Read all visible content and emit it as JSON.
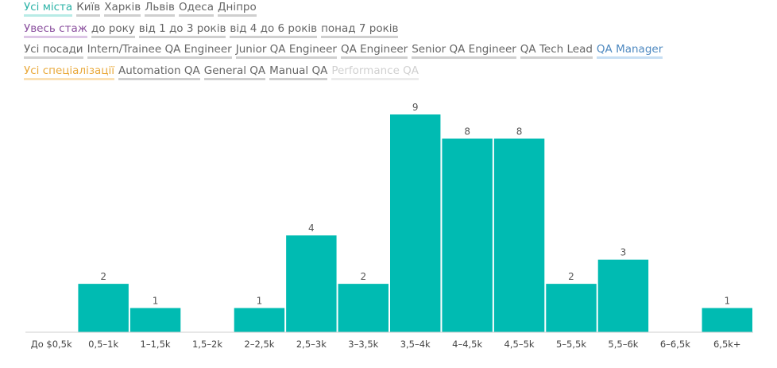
{
  "filters": {
    "cities": [
      "Усі міста",
      "Київ",
      "Харків",
      "Львів",
      "Одеса",
      "Дніпро"
    ],
    "experience": [
      "Увесь стаж",
      "до року",
      "від 1 до 3 років",
      "від 4 до 6 років",
      "понад 7 років"
    ],
    "positions": [
      "Усі посади",
      "Intern/Trainee QA Engineer",
      "Junior QA Engineer",
      "QA Engineer",
      "Senior QA Engineer",
      "QA Tech Lead",
      "QA Manager"
    ],
    "specializations": [
      "Усі спеціалізації",
      "Automation QA",
      "General QA",
      "Manual QA",
      "Performance QA"
    ]
  },
  "colors": {
    "bar": "#00bbb2",
    "city_active": "#2bb3a7",
    "experience_active": "#8a4f9e",
    "position_highlight": "#4e89c0",
    "specialization_active": "#e9a93b"
  },
  "chart_data": {
    "type": "bar",
    "categories": [
      "До $0,5k",
      "0,5–1k",
      "1–1,5k",
      "1,5–2k",
      "2–2,5k",
      "2,5–3k",
      "3–3,5k",
      "3,5–4k",
      "4–4,5k",
      "4,5–5k",
      "5–5,5k",
      "5,5–6k",
      "6–6,5k",
      "6,5k+"
    ],
    "values": [
      0,
      2,
      1,
      0,
      1,
      4,
      2,
      9,
      8,
      8,
      2,
      3,
      0,
      1
    ],
    "data_labels": [
      "",
      "2",
      "1",
      "",
      "1",
      "4",
      "2",
      "9",
      "8",
      "8",
      "2",
      "3",
      "",
      "1"
    ],
    "ylim": [
      0,
      9
    ],
    "grid": false,
    "legend": "none"
  }
}
